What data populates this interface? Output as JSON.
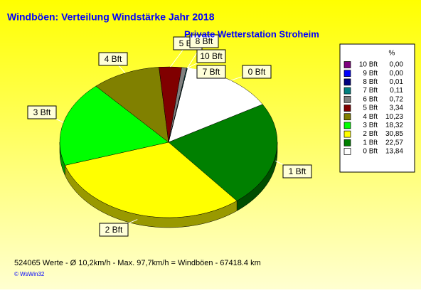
{
  "chart_data": {
    "type": "pie",
    "title": "Windböen: Verteilung Windstärke  Jahr 2018",
    "subtitle": "Private Wetterstation Stroheim",
    "legend_header": "%",
    "categories": [
      "0 Bft",
      "1 Bft",
      "2 Bft",
      "3 Bft",
      "4 Bft",
      "5 Bft",
      "6 Bft",
      "7 Bft",
      "8 Bft",
      "9 Bft",
      "10 Bft"
    ],
    "values": [
      13.84,
      22.57,
      30.85,
      18.32,
      10.23,
      3.34,
      0.72,
      0.11,
      0.01,
      0.0,
      0.0
    ],
    "value_labels": [
      "13,84",
      "22,57",
      "30,85",
      "18,32",
      "10,23",
      "3,34",
      "0,72",
      "0,11",
      "0,01",
      "0,00",
      "0,00"
    ],
    "colors": [
      "#ffffff",
      "#008000",
      "#ffff00",
      "#00ff00",
      "#808000",
      "#800000",
      "#808080",
      "#008080",
      "#000080",
      "#0000ff",
      "#800080"
    ],
    "footer": "524065 Werte   -   Ø 10,2km/h  -  Max. 97,7km/h = Windböen   -   67418.4 km",
    "credit": "© WsWin32"
  }
}
